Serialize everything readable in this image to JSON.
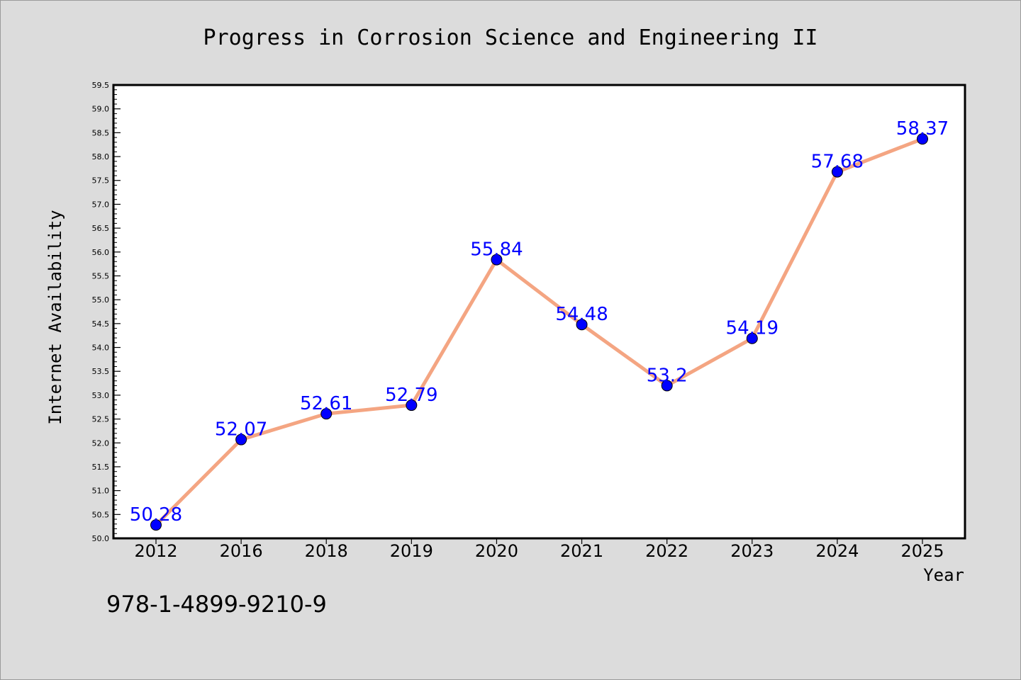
{
  "chart_data": {
    "type": "line",
    "title": "Progress in Corrosion Science and Engineering II",
    "xlabel": "Year",
    "ylabel": "Internet Availability",
    "categories": [
      "2012",
      "2016",
      "2018",
      "2019",
      "2020",
      "2021",
      "2022",
      "2023",
      "2024",
      "2025"
    ],
    "values": [
      50.28,
      52.07,
      52.61,
      52.79,
      55.84,
      54.48,
      53.2,
      54.19,
      57.68,
      58.37
    ],
    "data_labels": [
      "50.28",
      "52.07",
      "52.61",
      "52.79",
      "55.84",
      "54.48",
      "53.2",
      "54.19",
      "57.68",
      "58.37"
    ],
    "ylim": [
      50.0,
      59.5
    ],
    "yticks": [
      "50.0",
      "50.5",
      "51.0",
      "51.5",
      "52.0",
      "52.5",
      "53.0",
      "53.5",
      "54.0",
      "54.5",
      "55.0",
      "55.5",
      "56.0",
      "56.5",
      "57.0",
      "57.5",
      "58.0",
      "58.5",
      "59.0",
      "59.5"
    ],
    "grid": false,
    "line_color": "#f4a582",
    "marker_color": "#0000ff",
    "label_color": "#0000ff"
  },
  "footer_text": "978-1-4899-9210-9"
}
